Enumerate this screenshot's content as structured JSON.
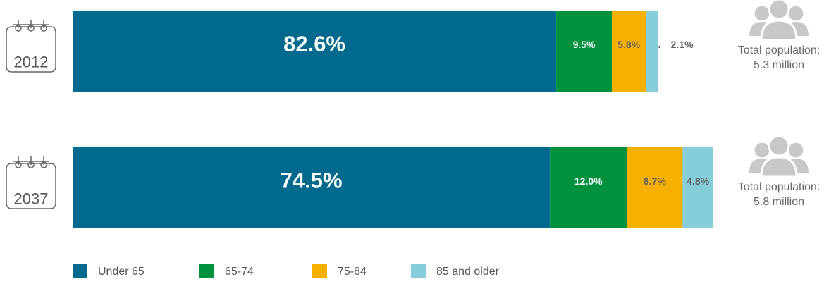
{
  "chart_data": {
    "type": "stacked-bar-horizontal",
    "categories": [
      "2012",
      "2037"
    ],
    "series": [
      {
        "name": "Under 65",
        "color": "#006a8e",
        "label_color": "#ffffff",
        "values": [
          82.6,
          74.5
        ],
        "value_labels": [
          "82.6%",
          "74.5%"
        ]
      },
      {
        "name": "65-74",
        "color": "#00913f",
        "label_color": "#ffffff",
        "values": [
          9.5,
          12.0
        ],
        "value_labels": [
          "9.5%",
          "12.0%"
        ]
      },
      {
        "name": "75-84",
        "color": "#f7b000",
        "label_color": "#5f5f5f",
        "values": [
          5.8,
          8.7
        ],
        "value_labels": [
          "5.8%",
          "8.7%"
        ]
      },
      {
        "name": "85 and older",
        "color": "#85cdd8",
        "label_color": "#5f5f5f",
        "values": [
          2.1,
          4.8
        ],
        "value_labels": [
          "2.1%",
          "4.8%"
        ]
      }
    ],
    "population": {
      "label": "Total population:",
      "values": [
        5.3,
        5.8
      ],
      "value_labels": [
        "5.3 million",
        "5.8 million"
      ]
    }
  }
}
